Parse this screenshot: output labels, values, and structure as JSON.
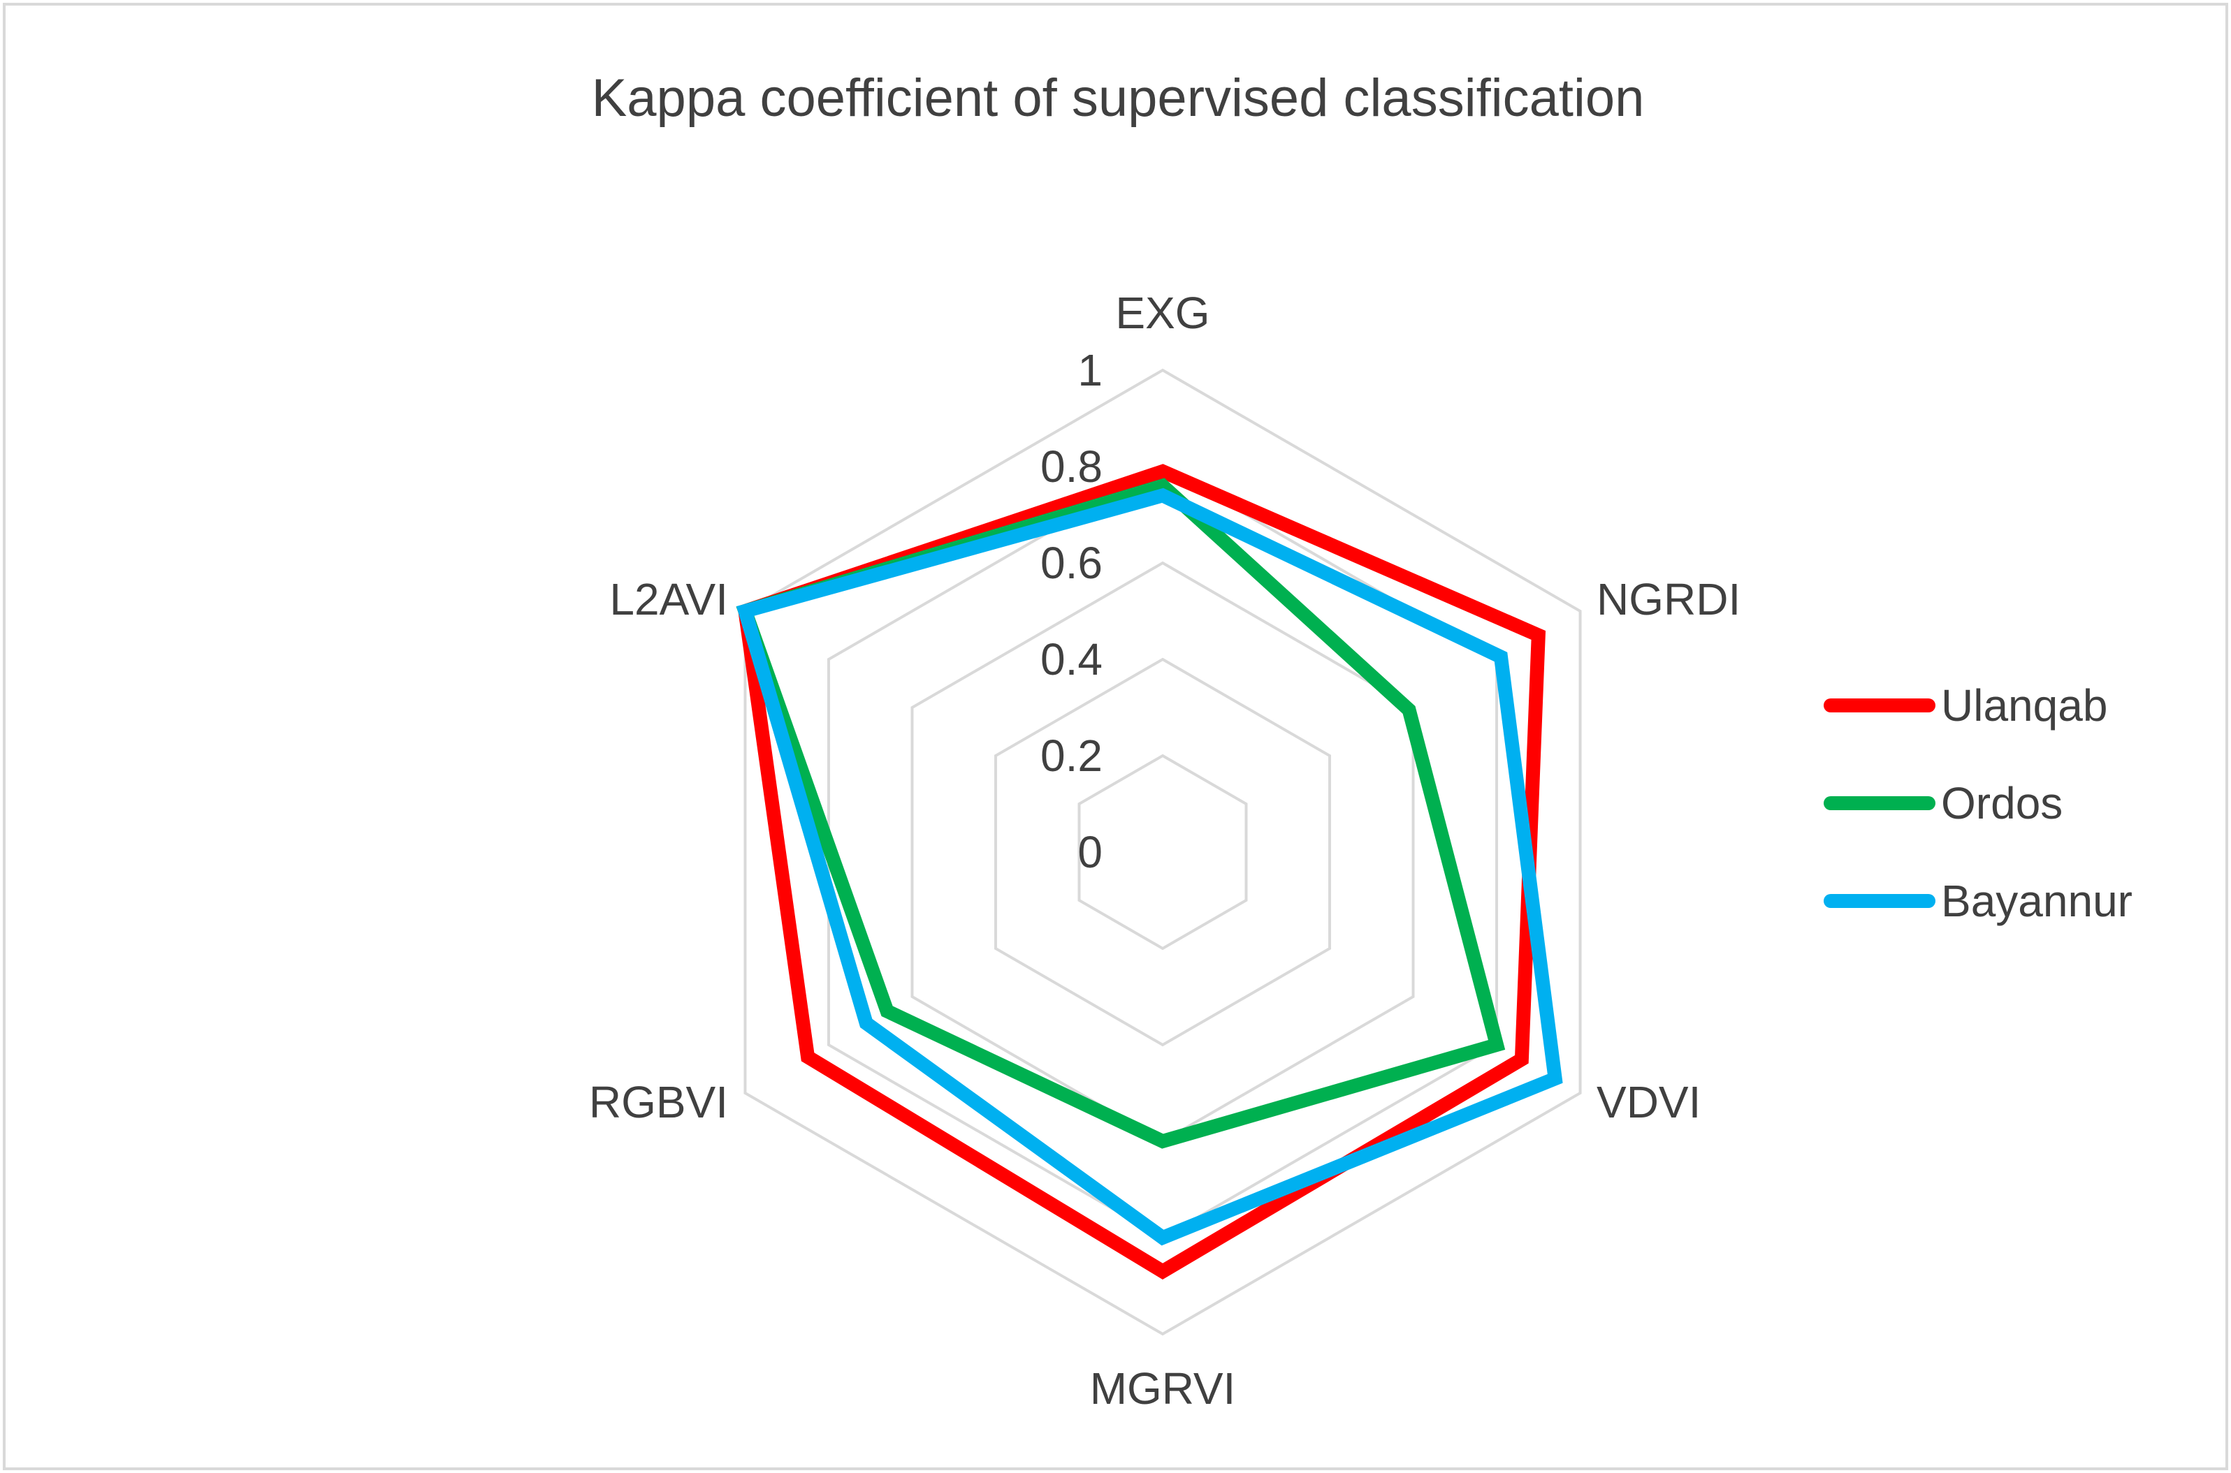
{
  "chart_data": {
    "type": "radar",
    "title": "Kappa coefficient of supervised classification",
    "categories": [
      "EXG",
      "NGRDI",
      "VDVI",
      "MGRVI",
      "RGBVI",
      "L2AVI"
    ],
    "rlim": [
      0,
      1
    ],
    "ticks": [
      0,
      0.2,
      0.4,
      0.6,
      0.8,
      1
    ],
    "tick_labels": [
      "0",
      "0.2",
      "0.4",
      "0.6",
      "0.8",
      "1"
    ],
    "grid": true,
    "legend_position": "right",
    "series": [
      {
        "name": "Ulanqab",
        "color": "#ff0000",
        "values": [
          0.79,
          0.9,
          0.86,
          0.87,
          0.85,
          1.0
        ]
      },
      {
        "name": "Ordos",
        "color": "#00b050",
        "values": [
          0.76,
          0.59,
          0.8,
          0.6,
          0.66,
          1.0
        ]
      },
      {
        "name": "Bayannur",
        "color": "#00b0f0",
        "values": [
          0.74,
          0.81,
          0.94,
          0.8,
          0.71,
          1.0
        ]
      }
    ]
  }
}
